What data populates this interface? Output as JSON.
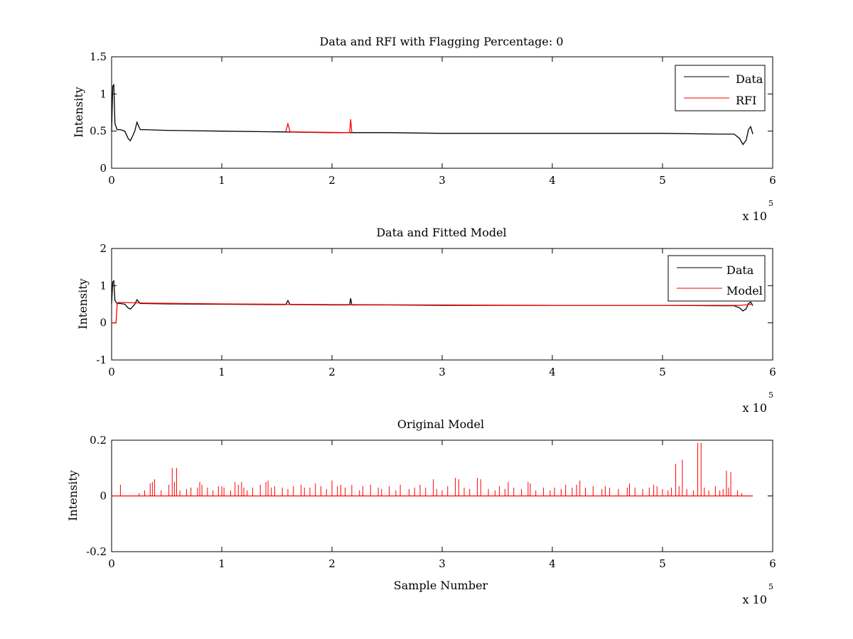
{
  "colors": {
    "data": "#000000",
    "rfi": "#ff0000",
    "model": "#ff0000",
    "axes": "#000000",
    "background": "#ffffff"
  },
  "chart_data": [
    {
      "type": "line",
      "title": "Data and RFI with Flagging Percentage: 0",
      "xlabel": "",
      "ylabel": "Intensity",
      "xlim": [
        0,
        6
      ],
      "ylim": [
        0,
        1.5
      ],
      "x_scale_label": "x 10",
      "x_scale_exponent": "5",
      "xticks": [
        "0",
        "1",
        "2",
        "3",
        "4",
        "5",
        "6"
      ],
      "yticks": [
        "0",
        "0.5",
        "1",
        "1.5"
      ],
      "legend_position": "top-right",
      "grid": false,
      "series": [
        {
          "name": "Data",
          "color": "#000000",
          "x": [
            0,
            0.01,
            0.02,
            0.03,
            0.05,
            0.08,
            0.12,
            0.15,
            0.17,
            0.19,
            0.21,
            0.23,
            0.26,
            0.3,
            0.5,
            1.0,
            1.5,
            2.0,
            2.5,
            3.0,
            3.5,
            4.0,
            4.5,
            5.0,
            5.5,
            5.65,
            5.7,
            5.73,
            5.76,
            5.78,
            5.8,
            5.82
          ],
          "y": [
            0.5,
            1.1,
            1.13,
            0.6,
            0.52,
            0.52,
            0.5,
            0.4,
            0.37,
            0.43,
            0.5,
            0.62,
            0.52,
            0.52,
            0.51,
            0.5,
            0.49,
            0.48,
            0.48,
            0.47,
            0.47,
            0.47,
            0.47,
            0.47,
            0.46,
            0.46,
            0.4,
            0.32,
            0.38,
            0.52,
            0.56,
            0.46
          ]
        },
        {
          "name": "RFI",
          "color": "#ff0000",
          "x": [
            1.58,
            1.6,
            1.62,
            2.16,
            2.17,
            2.18
          ],
          "y": [
            0.49,
            0.6,
            0.49,
            0.48,
            0.66,
            0.48
          ]
        }
      ]
    },
    {
      "type": "line",
      "title": "Data and Fitted Model",
      "xlabel": "",
      "ylabel": "Intensity",
      "xlim": [
        0,
        6
      ],
      "ylim": [
        -1,
        2
      ],
      "x_scale_label": "x 10",
      "x_scale_exponent": "5",
      "xticks": [
        "0",
        "1",
        "2",
        "3",
        "4",
        "5",
        "6"
      ],
      "yticks": [
        "-1",
        "0",
        "1",
        "2"
      ],
      "legend_position": "top-right",
      "grid": false,
      "series": [
        {
          "name": "Data",
          "color": "#000000",
          "x": [
            0,
            0.01,
            0.02,
            0.03,
            0.05,
            0.08,
            0.12,
            0.15,
            0.17,
            0.19,
            0.21,
            0.23,
            0.26,
            0.3,
            0.5,
            1.0,
            1.5,
            1.58,
            1.6,
            1.62,
            2.0,
            2.16,
            2.17,
            2.18,
            2.5,
            3.0,
            3.5,
            4.0,
            4.5,
            5.0,
            5.5,
            5.65,
            5.7,
            5.73,
            5.76,
            5.78,
            5.8,
            5.82
          ],
          "y": [
            0.5,
            1.1,
            1.13,
            0.6,
            0.52,
            0.52,
            0.5,
            0.4,
            0.37,
            0.43,
            0.5,
            0.62,
            0.52,
            0.52,
            0.51,
            0.5,
            0.49,
            0.49,
            0.6,
            0.49,
            0.48,
            0.48,
            0.66,
            0.48,
            0.48,
            0.47,
            0.47,
            0.47,
            0.47,
            0.47,
            0.46,
            0.46,
            0.4,
            0.32,
            0.38,
            0.52,
            0.56,
            0.46
          ]
        },
        {
          "name": "Model",
          "color": "#ff0000",
          "x": [
            0,
            0.02,
            0.04,
            0.05,
            0.06,
            0.3,
            1.0,
            2.0,
            3.0,
            4.0,
            5.0,
            5.7,
            5.82
          ],
          "y": [
            0.0,
            0.0,
            0.0,
            0.5,
            0.55,
            0.53,
            0.51,
            0.49,
            0.48,
            0.47,
            0.47,
            0.47,
            0.5
          ]
        }
      ]
    },
    {
      "type": "line",
      "title": "Original Model",
      "xlabel": "Sample Number",
      "ylabel": "Intensity",
      "xlim": [
        0,
        6
      ],
      "ylim": [
        -0.2,
        0.2
      ],
      "x_scale_label": "x 10",
      "x_scale_exponent": "5",
      "xticks": [
        "0",
        "1",
        "2",
        "3",
        "4",
        "5",
        "6"
      ],
      "yticks": [
        "-0.2",
        "0",
        "0.2"
      ],
      "grid": false,
      "spike_color": "#ff0000",
      "baseline": 0,
      "x_end": 5.82,
      "spikes_x": [
        0.08,
        0.25,
        0.3,
        0.35,
        0.37,
        0.39,
        0.45,
        0.52,
        0.55,
        0.57,
        0.59,
        0.62,
        0.68,
        0.72,
        0.78,
        0.8,
        0.82,
        0.87,
        0.92,
        0.97,
        1.0,
        1.02,
        1.08,
        1.12,
        1.15,
        1.18,
        1.2,
        1.23,
        1.28,
        1.35,
        1.4,
        1.42,
        1.45,
        1.48,
        1.55,
        1.6,
        1.65,
        1.72,
        1.75,
        1.8,
        1.85,
        1.9,
        1.95,
        2.0,
        2.05,
        2.08,
        2.12,
        2.18,
        2.25,
        2.28,
        2.35,
        2.42,
        2.45,
        2.52,
        2.58,
        2.62,
        2.7,
        2.75,
        2.8,
        2.85,
        2.92,
        2.95,
        3.0,
        3.05,
        3.12,
        3.15,
        3.2,
        3.25,
        3.32,
        3.35,
        3.42,
        3.48,
        3.52,
        3.57,
        3.6,
        3.65,
        3.72,
        3.78,
        3.8,
        3.85,
        3.92,
        3.98,
        4.02,
        4.08,
        4.12,
        4.18,
        4.22,
        4.25,
        4.3,
        4.37,
        4.45,
        4.48,
        4.52,
        4.6,
        4.68,
        4.7,
        4.75,
        4.82,
        4.88,
        4.92,
        4.95,
        5.0,
        5.05,
        5.08,
        5.12,
        5.15,
        5.18,
        5.22,
        5.28,
        5.32,
        5.35,
        5.38,
        5.42,
        5.48,
        5.52,
        5.55,
        5.58,
        5.6,
        5.62,
        5.68,
        5.72
      ],
      "spikes_y": [
        0.04,
        0.01,
        0.02,
        0.045,
        0.05,
        0.06,
        0.02,
        0.04,
        0.1,
        0.05,
        0.1,
        0.02,
        0.025,
        0.03,
        0.03,
        0.05,
        0.04,
        0.03,
        0.02,
        0.035,
        0.035,
        0.03,
        0.02,
        0.05,
        0.04,
        0.05,
        0.03,
        0.02,
        0.03,
        0.04,
        0.05,
        0.055,
        0.03,
        0.035,
        0.03,
        0.025,
        0.035,
        0.04,
        0.03,
        0.03,
        0.045,
        0.035,
        0.025,
        0.055,
        0.035,
        0.04,
        0.03,
        0.04,
        0.02,
        0.035,
        0.04,
        0.03,
        0.025,
        0.035,
        0.02,
        0.04,
        0.025,
        0.03,
        0.04,
        0.03,
        0.06,
        0.025,
        0.02,
        0.035,
        0.065,
        0.06,
        0.03,
        0.025,
        0.065,
        0.06,
        0.025,
        0.02,
        0.035,
        0.025,
        0.05,
        0.03,
        0.025,
        0.05,
        0.045,
        0.02,
        0.03,
        0.02,
        0.03,
        0.025,
        0.04,
        0.03,
        0.04,
        0.055,
        0.03,
        0.035,
        0.025,
        0.035,
        0.03,
        0.025,
        0.03,
        0.045,
        0.03,
        0.025,
        0.03,
        0.04,
        0.035,
        0.025,
        0.02,
        0.03,
        0.115,
        0.035,
        0.13,
        0.025,
        0.02,
        0.19,
        0.19,
        0.03,
        0.02,
        0.035,
        0.02,
        0.025,
        0.09,
        0.03,
        0.085,
        0.02,
        0.01
      ]
    }
  ]
}
